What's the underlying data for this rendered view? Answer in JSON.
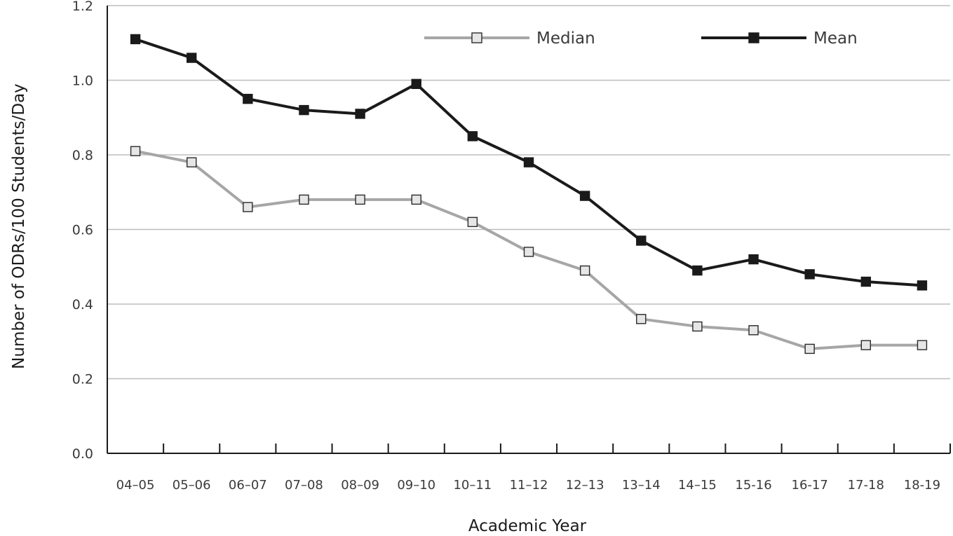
{
  "chart_data": {
    "type": "line",
    "title": "",
    "xlabel": "Academic Year",
    "ylabel": "Number of ODRs/100 Students/Day",
    "categories": [
      "04–05",
      "05–06",
      "06–07",
      "07–08",
      "08–09",
      "09–10",
      "10–11",
      "11–12",
      "12–13",
      "13–14",
      "14–15",
      "15-16",
      "16-17",
      "17-18",
      "18-19"
    ],
    "series": [
      {
        "name": "Median",
        "color": "#a6a6a6",
        "marker": "open-square",
        "values": [
          0.81,
          0.78,
          0.66,
          0.68,
          0.68,
          0.68,
          0.62,
          0.54,
          0.49,
          0.36,
          0.34,
          0.33,
          0.28,
          0.29,
          0.29
        ]
      },
      {
        "name": "Mean",
        "color": "#1a1a1a",
        "marker": "filled-square",
        "values": [
          1.11,
          1.06,
          0.95,
          0.92,
          0.91,
          0.99,
          0.85,
          0.78,
          0.69,
          0.57,
          0.49,
          0.52,
          0.48,
          0.46,
          0.45
        ]
      }
    ],
    "ylim": [
      0,
      1.2
    ],
    "yticks": [
      "0.0",
      "0.2",
      "0.4",
      "0.6",
      "0.8",
      "1.0",
      "1.2"
    ],
    "grid": true,
    "legend": "top-right"
  }
}
